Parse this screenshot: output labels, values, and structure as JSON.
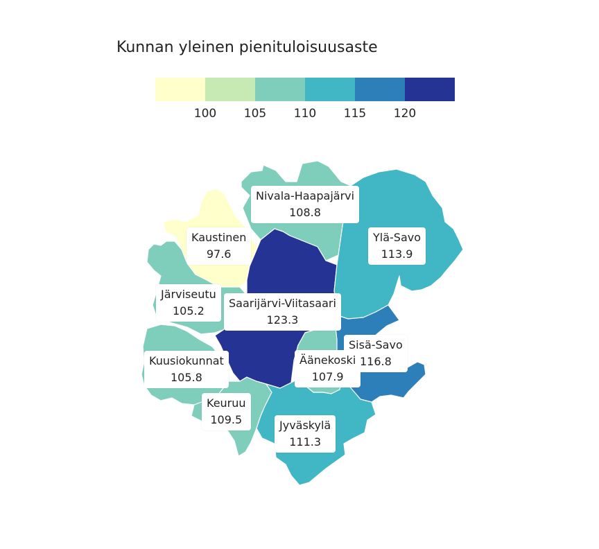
{
  "title": "Kunnan yleinen pienituloisuusaste",
  "legend": {
    "colors": [
      "#ffffcc",
      "#c7e9b4",
      "#7fcdbb",
      "#41b6c4",
      "#2c7fb8",
      "#253494"
    ],
    "ticks": [
      "100",
      "105",
      "110",
      "115",
      "120"
    ]
  },
  "regions": [
    {
      "name": "Kaustinen",
      "value": "97.6",
      "color": "#ffffcc"
    },
    {
      "name": "Nivala-Haapajärvi",
      "value": "108.8",
      "color": "#7fcdbb"
    },
    {
      "name": "Ylä-Savo",
      "value": "113.9",
      "color": "#41b6c4"
    },
    {
      "name": "Järviseutu",
      "value": "105.2",
      "color": "#7fcdbb"
    },
    {
      "name": "Saarijärvi-Viitasaari",
      "value": "123.3",
      "color": "#253494"
    },
    {
      "name": "Sisä-Savo",
      "value": "116.8",
      "color": "#2c7fb8"
    },
    {
      "name": "Kuusiokunnat",
      "value": "105.8",
      "color": "#7fcdbb"
    },
    {
      "name": "Äänekoski",
      "value": "107.9",
      "color": "#7fcdbb"
    },
    {
      "name": "Keuruu",
      "value": "109.5",
      "color": "#7fcdbb"
    },
    {
      "name": "Jyväskylä",
      "value": "111.3",
      "color": "#41b6c4"
    }
  ]
}
